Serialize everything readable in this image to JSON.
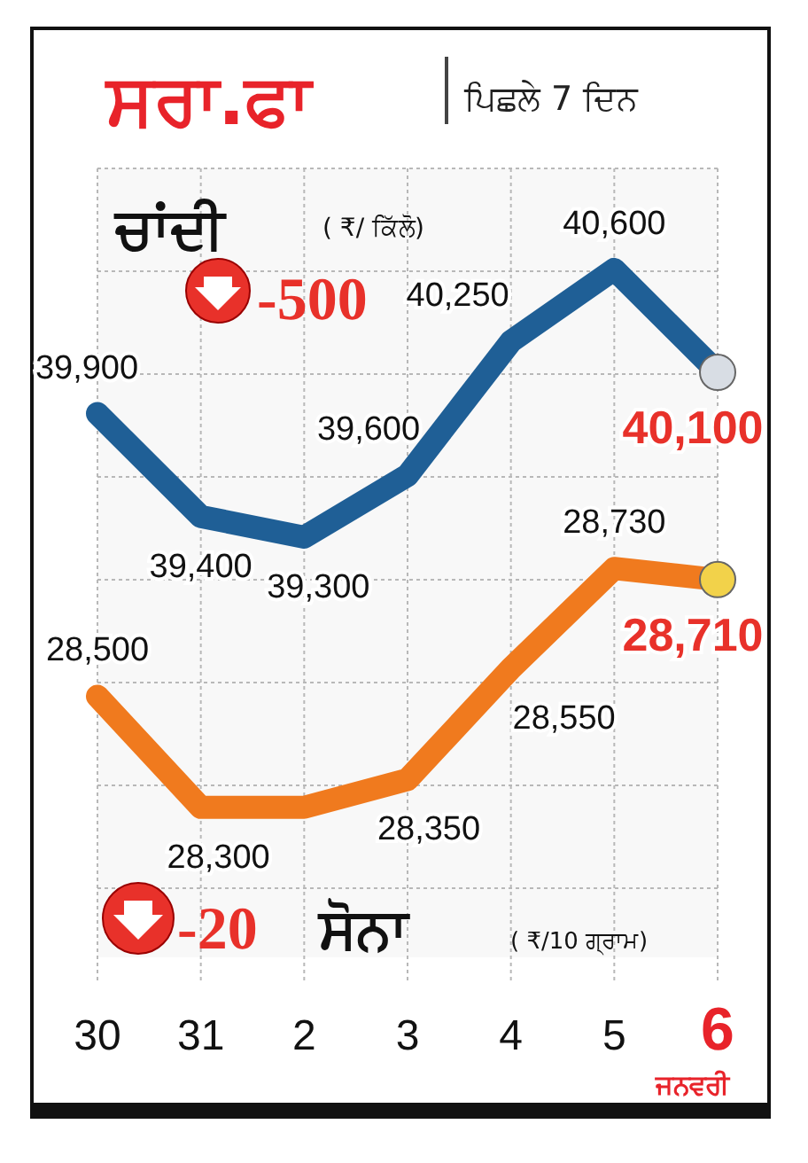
{
  "chart_data": {
    "type": "line",
    "title": "ਸਰਾ.ਫਾ",
    "subtitle": "ਪਿਛਲੇ 7 ਦਿਨ",
    "xlabel": "ਜਨਵਰੀ",
    "categories": [
      "30",
      "31",
      "2",
      "3",
      "4",
      "5",
      "6"
    ],
    "series": [
      {
        "name": "ਚਾਂਦੀ",
        "color": "#1f5f96",
        "values": [
          39900,
          39400,
          39300,
          39600,
          40250,
          40600,
          40100
        ],
        "value_labels": [
          "39,900",
          "39,400",
          "39,300",
          "39,600",
          "40,250",
          "40,600",
          "40,100"
        ]
      },
      {
        "name": "ਸੋਨਾ",
        "color": "#f07a1e",
        "axis": "y2",
        "values": [
          28500,
          28300,
          28300,
          28350,
          28550,
          28730,
          28710
        ],
        "value_labels": [
          "28,500",
          "28,300",
          null,
          "28,350",
          "28,550",
          "28,730",
          "28,710"
        ]
      }
    ],
    "annotations": [
      "( ₹/ ਕਿੱਲੋ)",
      "-500",
      "-20",
      "( ₹/10 ਗ੍ਰਾਮ)"
    ],
    "ylim": [
      37260,
      41090
    ],
    "y2lim": [
      28030,
      29450
    ],
    "tick_labels": "x",
    "grid": true
  }
}
